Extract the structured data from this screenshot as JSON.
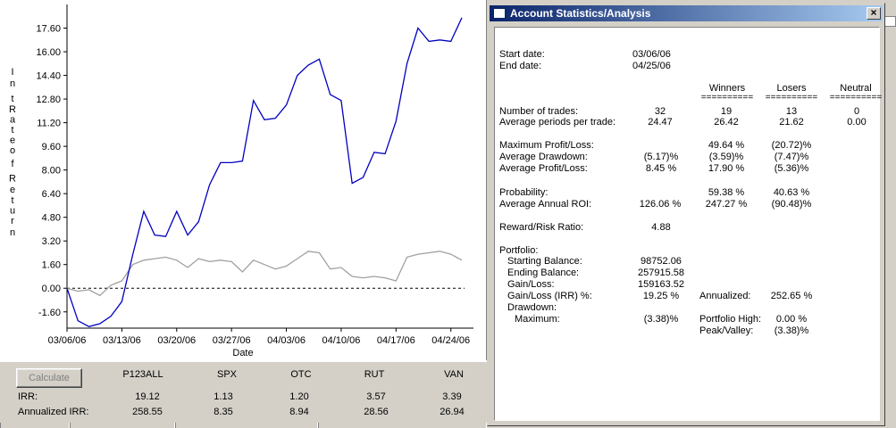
{
  "chart": {
    "y_axis_letters": [
      "I",
      "n",
      "t",
      "R",
      "a",
      "t",
      "e",
      "o",
      "f",
      "R",
      "e",
      "t",
      "u",
      "r",
      "n"
    ],
    "y_ticks": [
      "17.60",
      "16.00",
      "14.40",
      "12.80",
      "11.20",
      "9.60",
      "8.00",
      "6.40",
      "4.80",
      "3.20",
      "1.60",
      "0.00",
      "-1.60"
    ],
    "x_ticks": [
      "03/06/06",
      "03/13/06",
      "03/20/06",
      "03/27/06",
      "04/03/06",
      "04/10/06",
      "04/17/06",
      "04/24/06"
    ],
    "x_label": "Date"
  },
  "chart_data": {
    "type": "line",
    "title": "",
    "xlabel": "Date",
    "ylabel": "Int Rate of Return",
    "ylim": [
      -2.7,
      19.2
    ],
    "grid": false,
    "series": [
      {
        "color": "#0000c0",
        "values": [
          0.0,
          -2.2,
          -2.6,
          -2.4,
          -1.9,
          -0.9,
          2.3,
          5.2,
          3.6,
          3.5,
          5.2,
          3.6,
          4.5,
          7.0,
          8.5,
          8.5,
          8.6,
          12.7,
          11.4,
          11.5,
          12.4,
          14.4,
          15.1,
          15.5,
          13.1,
          12.7,
          7.1,
          7.5,
          9.2,
          9.1,
          11.3,
          15.2,
          17.6,
          16.7,
          16.8,
          16.7,
          18.3
        ]
      },
      {
        "color": "#a0a0a0",
        "values": [
          0.0,
          -0.2,
          -0.1,
          -0.5,
          0.2,
          0.5,
          1.6,
          1.9,
          2.0,
          2.1,
          1.9,
          1.4,
          2.0,
          1.8,
          1.9,
          1.8,
          1.1,
          1.9,
          1.6,
          1.3,
          1.5,
          2.0,
          2.5,
          2.4,
          1.3,
          1.4,
          0.8,
          0.7,
          0.8,
          0.7,
          0.5,
          2.1,
          2.3,
          2.4,
          2.5,
          2.3,
          1.9
        ]
      }
    ]
  },
  "irr_panel": {
    "calculate_label": "Calculate",
    "columns": [
      "P123ALL",
      "SPX",
      "OTC",
      "RUT",
      "VAN"
    ],
    "irr_label": "IRR:",
    "annualized_label": "Annualized IRR:",
    "irr": [
      "19.12",
      "1.13",
      "1.20",
      "3.57",
      "3.39"
    ],
    "annualized": [
      "258.55",
      "8.35",
      "8.94",
      "28.56",
      "26.94"
    ]
  },
  "dialog": {
    "title": "Account Statistics/Analysis",
    "close_glyph": "×",
    "start_label": "Start date:",
    "start_value": "03/06/06",
    "end_label": "End date:",
    "end_value": "04/25/06",
    "col_winners": "Winners",
    "col_losers": "Losers",
    "col_neutral": "Neutral",
    "underline": "==========",
    "rows": {
      "num_trades": {
        "label": "Number of trades:",
        "all": "32",
        "win": "19",
        "los": "13",
        "neu": "0"
      },
      "avg_periods": {
        "label": "Average periods per trade:",
        "all": "24.47",
        "win": "26.42",
        "los": "21.62",
        "neu": "0.00"
      },
      "max_pl": {
        "label": "Maximum Profit/Loss:",
        "win": "49.64 %",
        "los": "(20.72)%"
      },
      "avg_dd": {
        "label": "Average Drawdown:",
        "all": "(5.17)%",
        "win": "(3.59)%",
        "los": "(7.47)%"
      },
      "avg_pl": {
        "label": "Average Profit/Loss:",
        "all": "8.45 %",
        "win": "17.90 %",
        "los": "(5.36)%"
      },
      "prob": {
        "label": "Probability:",
        "win": "59.38 %",
        "los": "40.63 %"
      },
      "avg_roi": {
        "label": "Average Annual ROI:",
        "all": "126.06 %",
        "win": "247.27 %",
        "los": "(90.48)%"
      },
      "rr": {
        "label": "Reward/Risk Ratio:",
        "all": "4.88"
      }
    },
    "portfolio": {
      "label": "Portfolio:",
      "start_bal_label": "Starting Balance:",
      "start_bal": "98752.06",
      "end_bal_label": "Ending Balance:",
      "end_bal": "257915.58",
      "gain_label": "Gain/Loss:",
      "gain": "159163.52",
      "gain_irr_label": "Gain/Loss (IRR) %:",
      "gain_irr": "19.25 %",
      "annualized_label": "Annualized:",
      "annualized": "252.65 %",
      "drawdown_label": "Drawdown:",
      "max_label": "Maximum:",
      "max": "(3.38)%",
      "high_label": "Portfolio High:",
      "high": "0.00 %",
      "peak_label": "Peak/Valley:",
      "peak": "(3.38)%"
    }
  }
}
